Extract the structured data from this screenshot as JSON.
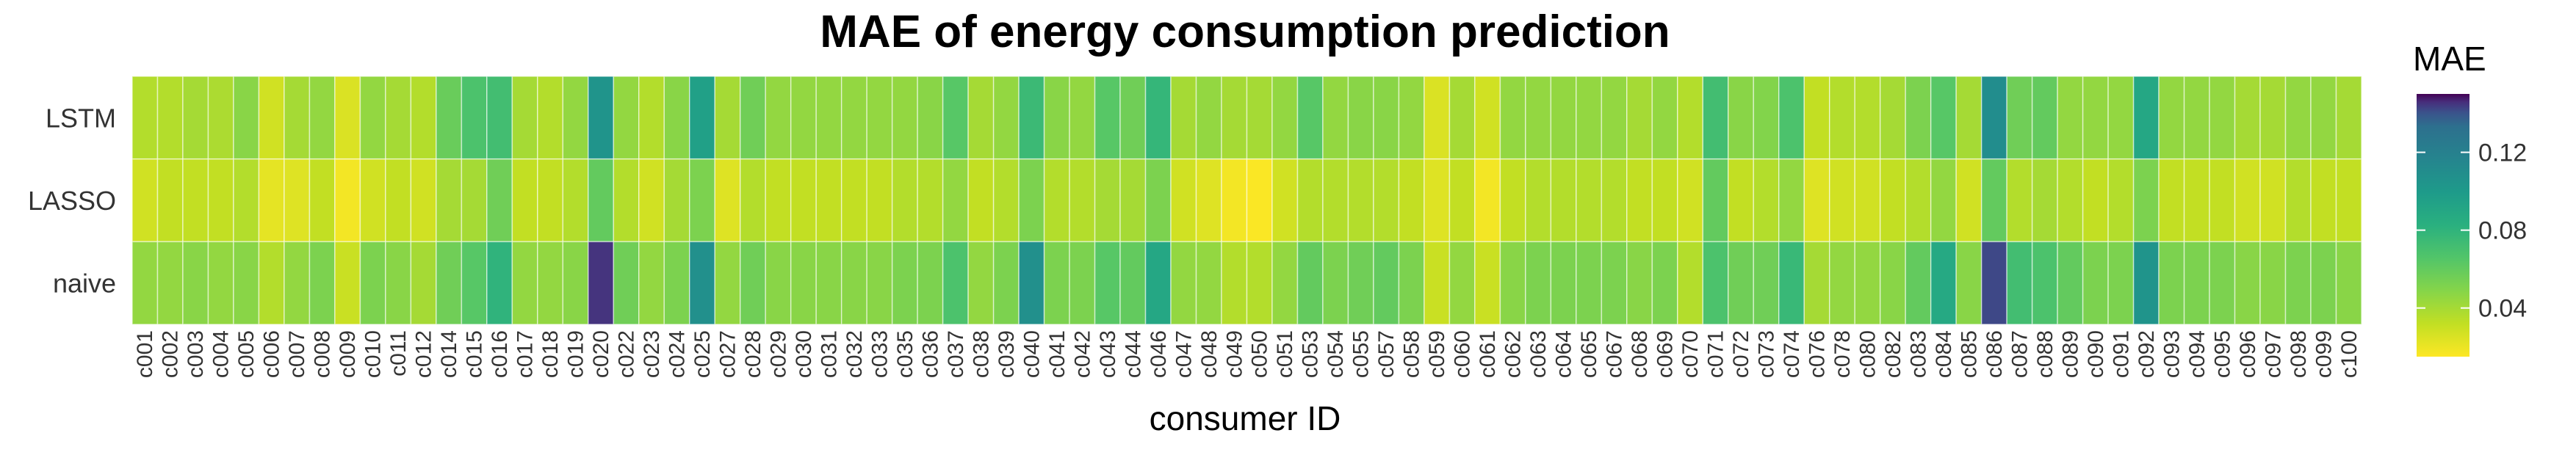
{
  "chart_data": {
    "type": "heatmap",
    "title": "MAE of energy consumption prediction",
    "xlabel": "consumer ID",
    "ylabel": "",
    "rows": [
      "LSTM",
      "LASSO",
      "naive"
    ],
    "columns": [
      "c001",
      "c002",
      "c003",
      "c004",
      "c005",
      "c006",
      "c007",
      "c008",
      "c009",
      "c010",
      "c011",
      "c012",
      "c014",
      "c015",
      "c016",
      "c017",
      "c018",
      "c019",
      "c020",
      "c022",
      "c023",
      "c024",
      "c025",
      "c027",
      "c028",
      "c029",
      "c030",
      "c031",
      "c032",
      "c033",
      "c035",
      "c036",
      "c037",
      "c038",
      "c039",
      "c040",
      "c041",
      "c042",
      "c043",
      "c044",
      "c046",
      "c047",
      "c048",
      "c049",
      "c050",
      "c051",
      "c053",
      "c054",
      "c055",
      "c057",
      "c058",
      "c059",
      "c060",
      "c061",
      "c062",
      "c063",
      "c064",
      "c065",
      "c067",
      "c068",
      "c069",
      "c070",
      "c071",
      "c072",
      "c073",
      "c074",
      "c076",
      "c078",
      "c080",
      "c082",
      "c083",
      "c084",
      "c085",
      "c086",
      "c087",
      "c088",
      "c089",
      "c090",
      "c091",
      "c092",
      "c093",
      "c094",
      "c095",
      "c096",
      "c097",
      "c098",
      "c099",
      "c100"
    ],
    "values": [
      [
        0.036,
        0.036,
        0.04,
        0.038,
        0.048,
        0.028,
        0.04,
        0.045,
        0.025,
        0.045,
        0.04,
        0.036,
        0.058,
        0.068,
        0.072,
        0.04,
        0.036,
        0.045,
        0.105,
        0.045,
        0.036,
        0.048,
        0.095,
        0.04,
        0.056,
        0.045,
        0.045,
        0.045,
        0.045,
        0.045,
        0.045,
        0.048,
        0.064,
        0.04,
        0.045,
        0.075,
        0.048,
        0.045,
        0.064,
        0.056,
        0.078,
        0.04,
        0.045,
        0.04,
        0.04,
        0.045,
        0.064,
        0.045,
        0.048,
        0.048,
        0.045,
        0.025,
        0.04,
        0.028,
        0.045,
        0.045,
        0.045,
        0.045,
        0.045,
        0.04,
        0.045,
        0.036,
        0.072,
        0.048,
        0.05,
        0.068,
        0.032,
        0.036,
        0.036,
        0.04,
        0.052,
        0.064,
        0.04,
        0.11,
        0.056,
        0.06,
        0.045,
        0.045,
        0.045,
        0.09,
        0.045,
        0.045,
        0.045,
        0.04,
        0.04,
        0.045,
        0.045,
        0.04
      ],
      [
        0.028,
        0.032,
        0.032,
        0.032,
        0.036,
        0.022,
        0.024,
        0.032,
        0.018,
        0.028,
        0.032,
        0.028,
        0.04,
        0.04,
        0.056,
        0.032,
        0.032,
        0.036,
        0.06,
        0.036,
        0.028,
        0.04,
        0.052,
        0.024,
        0.036,
        0.032,
        0.032,
        0.032,
        0.032,
        0.032,
        0.036,
        0.036,
        0.045,
        0.032,
        0.036,
        0.052,
        0.036,
        0.036,
        0.04,
        0.04,
        0.052,
        0.028,
        0.024,
        0.018,
        0.016,
        0.028,
        0.036,
        0.036,
        0.036,
        0.036,
        0.032,
        0.024,
        0.032,
        0.018,
        0.032,
        0.036,
        0.036,
        0.036,
        0.036,
        0.032,
        0.032,
        0.028,
        0.06,
        0.032,
        0.036,
        0.045,
        0.024,
        0.028,
        0.028,
        0.032,
        0.036,
        0.045,
        0.028,
        0.06,
        0.036,
        0.04,
        0.036,
        0.032,
        0.036,
        0.052,
        0.032,
        0.032,
        0.032,
        0.028,
        0.028,
        0.036,
        0.032,
        0.032
      ],
      [
        0.045,
        0.045,
        0.048,
        0.045,
        0.048,
        0.036,
        0.045,
        0.052,
        0.03,
        0.052,
        0.048,
        0.04,
        0.056,
        0.064,
        0.08,
        0.045,
        0.045,
        0.048,
        0.145,
        0.056,
        0.045,
        0.052,
        0.108,
        0.045,
        0.056,
        0.048,
        0.048,
        0.048,
        0.048,
        0.048,
        0.052,
        0.052,
        0.068,
        0.045,
        0.052,
        0.108,
        0.052,
        0.052,
        0.064,
        0.06,
        0.09,
        0.045,
        0.045,
        0.036,
        0.036,
        0.045,
        0.06,
        0.052,
        0.056,
        0.06,
        0.052,
        0.03,
        0.045,
        0.03,
        0.048,
        0.052,
        0.052,
        0.052,
        0.052,
        0.048,
        0.052,
        0.036,
        0.068,
        0.056,
        0.056,
        0.076,
        0.04,
        0.045,
        0.045,
        0.048,
        0.06,
        0.088,
        0.048,
        0.142,
        0.072,
        0.068,
        0.06,
        0.052,
        0.052,
        0.105,
        0.052,
        0.052,
        0.052,
        0.048,
        0.048,
        0.052,
        0.052,
        0.048
      ]
    ],
    "colorbar": {
      "title": "MAE",
      "ticks": [
        0.04,
        0.08,
        0.12
      ],
      "min": 0.015,
      "max": 0.15,
      "palette": "viridis (reversed)"
    },
    "legend_position": "right"
  }
}
